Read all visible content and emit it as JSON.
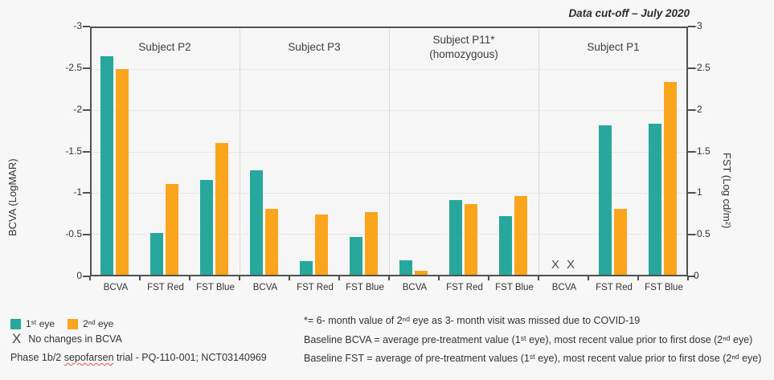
{
  "header": {
    "title": "Data cut-off – July 2020"
  },
  "chart_data": {
    "type": "bar",
    "title": "Data cut-off – July 2020",
    "ylabel_left": "BCVA (LogMAR)",
    "ylabel_right": "FST (Log cd/m²)",
    "ylim": [
      0,
      -3
    ],
    "yticks": [
      "-3",
      "-2.5",
      "-2",
      "-1.5",
      "-1",
      "-0.5",
      "0"
    ],
    "grid": true,
    "series": [
      {
        "name": "1ˢᵗ eye",
        "color": "#28A79C"
      },
      {
        "name": "2ⁿᵈ eye",
        "color": "#FAA51C"
      }
    ],
    "groups": [
      {
        "subject": "Subject P2",
        "categories": [
          {
            "label": "BCVA",
            "values": [
              -2.66,
              -2.5
            ]
          },
          {
            "label": "FST Red",
            "values": [
              -0.51,
              -1.1
            ]
          },
          {
            "label": "FST Blue",
            "values": [
              -1.15,
              -1.6
            ]
          }
        ]
      },
      {
        "subject": "Subject P3",
        "categories": [
          {
            "label": "BCVA",
            "values": [
              -1.27,
              -0.8
            ]
          },
          {
            "label": "FST Red",
            "values": [
              -0.17,
              -0.73
            ]
          },
          {
            "label": "FST Blue",
            "values": [
              -0.46,
              -0.76
            ]
          }
        ]
      },
      {
        "subject": "Subject P11*",
        "subject_line2": "(homozygous)",
        "categories": [
          {
            "label": "BCVA",
            "values": [
              -0.18,
              -0.05
            ]
          },
          {
            "label": "FST Red",
            "values": [
              -0.91,
              -0.86
            ]
          },
          {
            "label": "FST Blue",
            "values": [
              -0.71,
              -0.96
            ]
          }
        ]
      },
      {
        "subject": "Subject P1",
        "categories": [
          {
            "label": "BCVA",
            "values": [
              null,
              null
            ],
            "marker": "X"
          },
          {
            "label": "FST Red",
            "values": [
              -1.82,
              -0.8
            ]
          },
          {
            "label": "FST Blue",
            "values": [
              -1.84,
              -2.35
            ]
          }
        ]
      }
    ]
  },
  "legend": {
    "marker_symbol": "X",
    "marker_text": "No changes in BCVA"
  },
  "trial_note": {
    "prefix": "Phase 1b/2 ",
    "word": "sepofarsen",
    "suffix": " trial - PQ-110-001; NCT03140969"
  },
  "footnotes": [
    "*= 6- month value of 2ⁿᵈ eye as 3- month visit was missed due to COVID-19",
    "Baseline BCVA = average pre-treatment value (1ˢᵗ eye), most recent value prior to first dose (2ⁿᵈ eye)",
    "Baseline FST = average of pre-treatment values (1ˢᵗ eye), most recent value prior to first dose (2ⁿᵈ eye)"
  ],
  "colors": {
    "eye1": "#28A79C",
    "eye2": "#FAA51C",
    "axis": "#515151",
    "grid": "#e7e7e7",
    "background": "#f7f7f7"
  }
}
